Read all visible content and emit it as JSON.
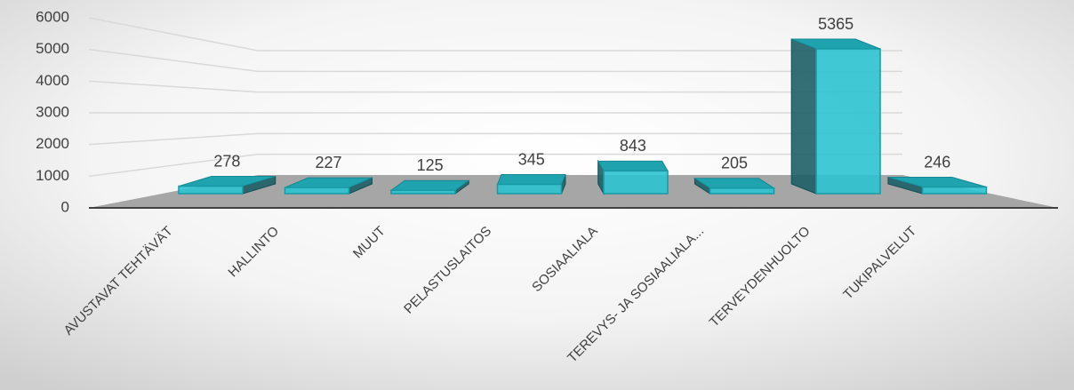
{
  "chart_data": {
    "type": "bar3d",
    "categories": [
      "AVUSTAVAT TEHTÄVÄT",
      "HALLINTO",
      "MUUT",
      "PELASTUSLAITOS",
      "SOSIAALIALA",
      "TEREVYS- JA SOSIAALIALA...",
      "TERVEYDENHUOLTO",
      "TUKIPALVELUT"
    ],
    "values": [
      278,
      227,
      125,
      345,
      843,
      205,
      5365,
      246
    ],
    "color": "#2cc3d0",
    "ylim": [
      0,
      6000
    ],
    "yticks": [
      0,
      1000,
      2000,
      3000,
      4000,
      5000,
      6000
    ],
    "grid": true
  }
}
